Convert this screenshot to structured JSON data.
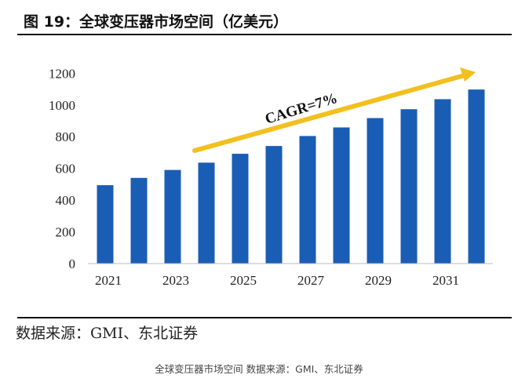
{
  "figure_title": "图 19：全球变压器市场空间（亿美元）",
  "source": "数据来源：GMI、东北证券",
  "caption": "全球变压器市场空间 数据来源：GMI、东北证券",
  "chart_data": {
    "type": "bar",
    "title": "图 19：全球变压器市场空间（亿美元）",
    "categories": [
      "2021",
      "2022",
      "2023",
      "2024",
      "2025",
      "2026",
      "2027",
      "2028",
      "2029",
      "2030",
      "2031",
      "2032"
    ],
    "values": [
      494,
      540,
      590,
      636,
      692,
      741,
      804,
      858,
      917,
      973,
      1036,
      1097
    ],
    "x_tick_labels": [
      "2021",
      "2023",
      "2025",
      "2027",
      "2029",
      "2031"
    ],
    "y_ticks": [
      "0",
      "200",
      "400",
      "600",
      "800",
      "1000",
      "1200"
    ],
    "ylim": [
      0,
      1200
    ],
    "grid": false,
    "annotation": "CAGR=7%",
    "bar_color": "#1a5db5",
    "arrow_color": "#f2c01e"
  }
}
